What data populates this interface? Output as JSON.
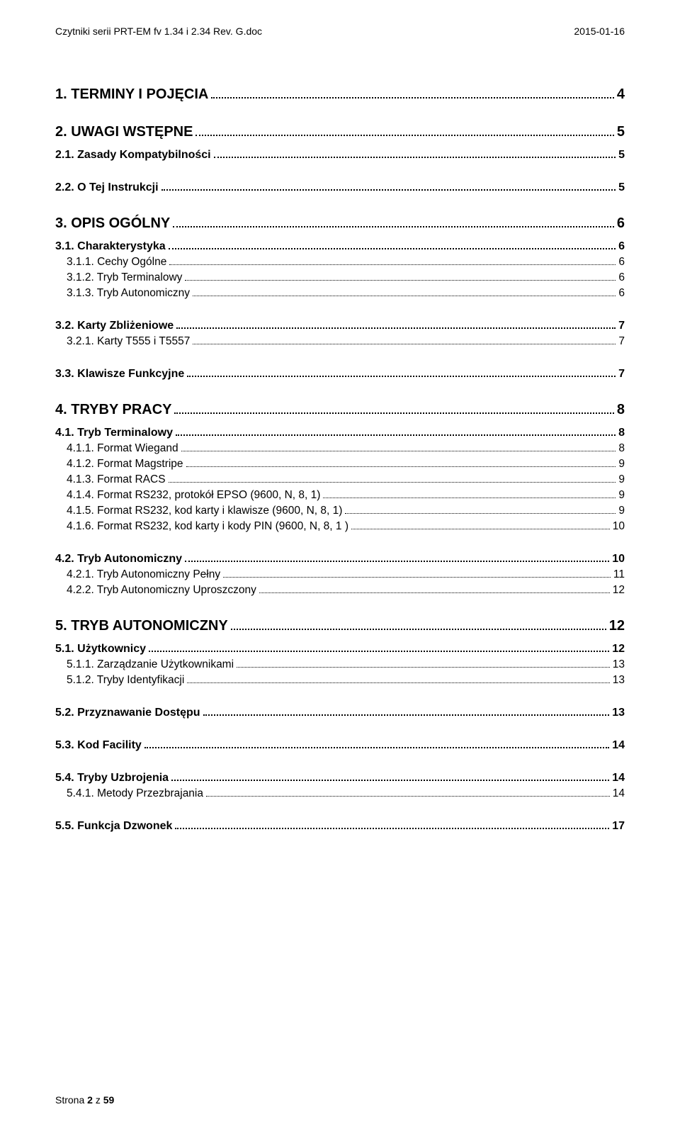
{
  "header": {
    "left": "Czytniki serii PRT-EM fv 1.34 i 2.34 Rev. G.doc",
    "right": "2015-01-16"
  },
  "toc": [
    {
      "level": 1,
      "label": "1.   TERMINY I POJĘCIA",
      "page": "4"
    },
    {
      "level": 1,
      "label": "2.   UWAGI WSTĘPNE",
      "page": "5"
    },
    {
      "level": 2,
      "label": "2.1. Zasady Kompatybilności",
      "page": "5"
    },
    {
      "level": 2,
      "label": "2.2. O Tej Instrukcji",
      "page": "5"
    },
    {
      "level": 1,
      "label": "3.   OPIS OGÓLNY",
      "page": "6"
    },
    {
      "level": 2,
      "label": "3.1. Charakterystyka",
      "page": "6"
    },
    {
      "level": 3,
      "label": "3.1.1. Cechy Ogólne",
      "page": "6"
    },
    {
      "level": 3,
      "label": "3.1.2. Tryb Terminalowy",
      "page": "6"
    },
    {
      "level": 3,
      "label": "3.1.3. Tryb Autonomiczny",
      "page": "6"
    },
    {
      "level": 2,
      "label": "3.2. Karty Zbliżeniowe",
      "page": "7"
    },
    {
      "level": 3,
      "label": "3.2.1. Karty T555 i T5557",
      "page": "7"
    },
    {
      "level": 2,
      "label": "3.3. Klawisze Funkcyjne",
      "page": "7"
    },
    {
      "level": 1,
      "label": "4.   TRYBY PRACY",
      "page": "8"
    },
    {
      "level": 2,
      "label": "4.1. Tryb Terminalowy",
      "page": "8"
    },
    {
      "level": 3,
      "label": "4.1.1. Format Wiegand",
      "page": "8"
    },
    {
      "level": 3,
      "label": "4.1.2. Format Magstripe",
      "page": "9"
    },
    {
      "level": 3,
      "label": "4.1.3. Format RACS",
      "page": "9"
    },
    {
      "level": 3,
      "label": "4.1.4. Format RS232,  protokół EPSO (9600, N, 8, 1)",
      "page": "9"
    },
    {
      "level": 3,
      "label": "4.1.5. Format RS232, kod karty i klawisze (9600, N, 8, 1)",
      "page": "9"
    },
    {
      "level": 3,
      "label": "4.1.6. Format RS232, kod karty i kody PIN (9600, N, 8, 1 )",
      "page": "10"
    },
    {
      "level": 2,
      "label": "4.2. Tryb Autonomiczny",
      "page": "10"
    },
    {
      "level": 3,
      "label": "4.2.1. Tryb Autonomiczny Pełny",
      "page": "11"
    },
    {
      "level": 3,
      "label": "4.2.2. Tryb Autonomiczny Uproszczony",
      "page": "12"
    },
    {
      "level": 1,
      "label": "5.   TRYB AUTONOMICZNY",
      "page": "12"
    },
    {
      "level": 2,
      "label": "5.1. Użytkownicy",
      "page": "12"
    },
    {
      "level": 3,
      "label": "5.1.1. Zarządzanie Użytkownikami",
      "page": "13"
    },
    {
      "level": 3,
      "label": "5.1.2. Tryby Identyfikacji",
      "page": "13"
    },
    {
      "level": 2,
      "label": "5.2. Przyznawanie Dostępu",
      "page": "13"
    },
    {
      "level": 2,
      "label": "5.3. Kod Facility",
      "page": "14"
    },
    {
      "level": 2,
      "label": "5.4. Tryby Uzbrojenia",
      "page": "14"
    },
    {
      "level": 3,
      "label": "5.4.1. Metody Przezbrajania",
      "page": "14"
    },
    {
      "level": 2,
      "label": "5.5. Funkcja Dzwonek",
      "page": "17"
    }
  ],
  "footer": {
    "prefix": "Strona ",
    "current": "2",
    "sep": " z ",
    "total": "59"
  }
}
